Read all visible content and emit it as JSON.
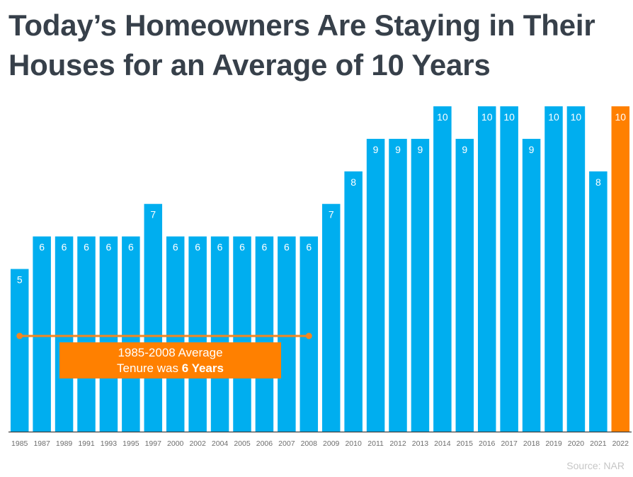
{
  "title": "Today’s Homeowners Are Staying in Their Houses for an Average of 10 Years",
  "source": "Source: NAR",
  "annotation": {
    "line1": "1985-2008 Average",
    "line2_prefix": "Tenure was ",
    "line2_bold": "6 Years",
    "average_value": 6,
    "start_category": "1985",
    "end_category": "2008",
    "color": "#ff8000",
    "line_color": "#f5861f"
  },
  "colors": {
    "bar": "#00aeef",
    "highlight_bar": "#ff8000",
    "axis": "#404040",
    "tick_label": "#6d6d6d",
    "data_label": "#ffffff"
  },
  "chart_data": {
    "type": "bar",
    "title": "Today’s Homeowners Are Staying in Their Houses for an Average of 10 Years",
    "xlabel": "",
    "ylabel": "",
    "categories": [
      "1985",
      "1987",
      "1989",
      "1991",
      "1993",
      "1995",
      "1997",
      "2000",
      "2002",
      "2004",
      "2005",
      "2006",
      "2007",
      "2008",
      "2009",
      "2010",
      "2011",
      "2012",
      "2013",
      "2014",
      "2015",
      "2016",
      "2017",
      "2018",
      "2019",
      "2020",
      "2021",
      "2022"
    ],
    "values": [
      5,
      6,
      6,
      6,
      6,
      6,
      7,
      6,
      6,
      6,
      6,
      6,
      6,
      6,
      7,
      8,
      9,
      9,
      9,
      10,
      9,
      10,
      10,
      9,
      10,
      10,
      8,
      10
    ],
    "ylim": [
      0,
      10
    ],
    "highlight_category": "2022",
    "grid": false,
    "legend": "none"
  }
}
